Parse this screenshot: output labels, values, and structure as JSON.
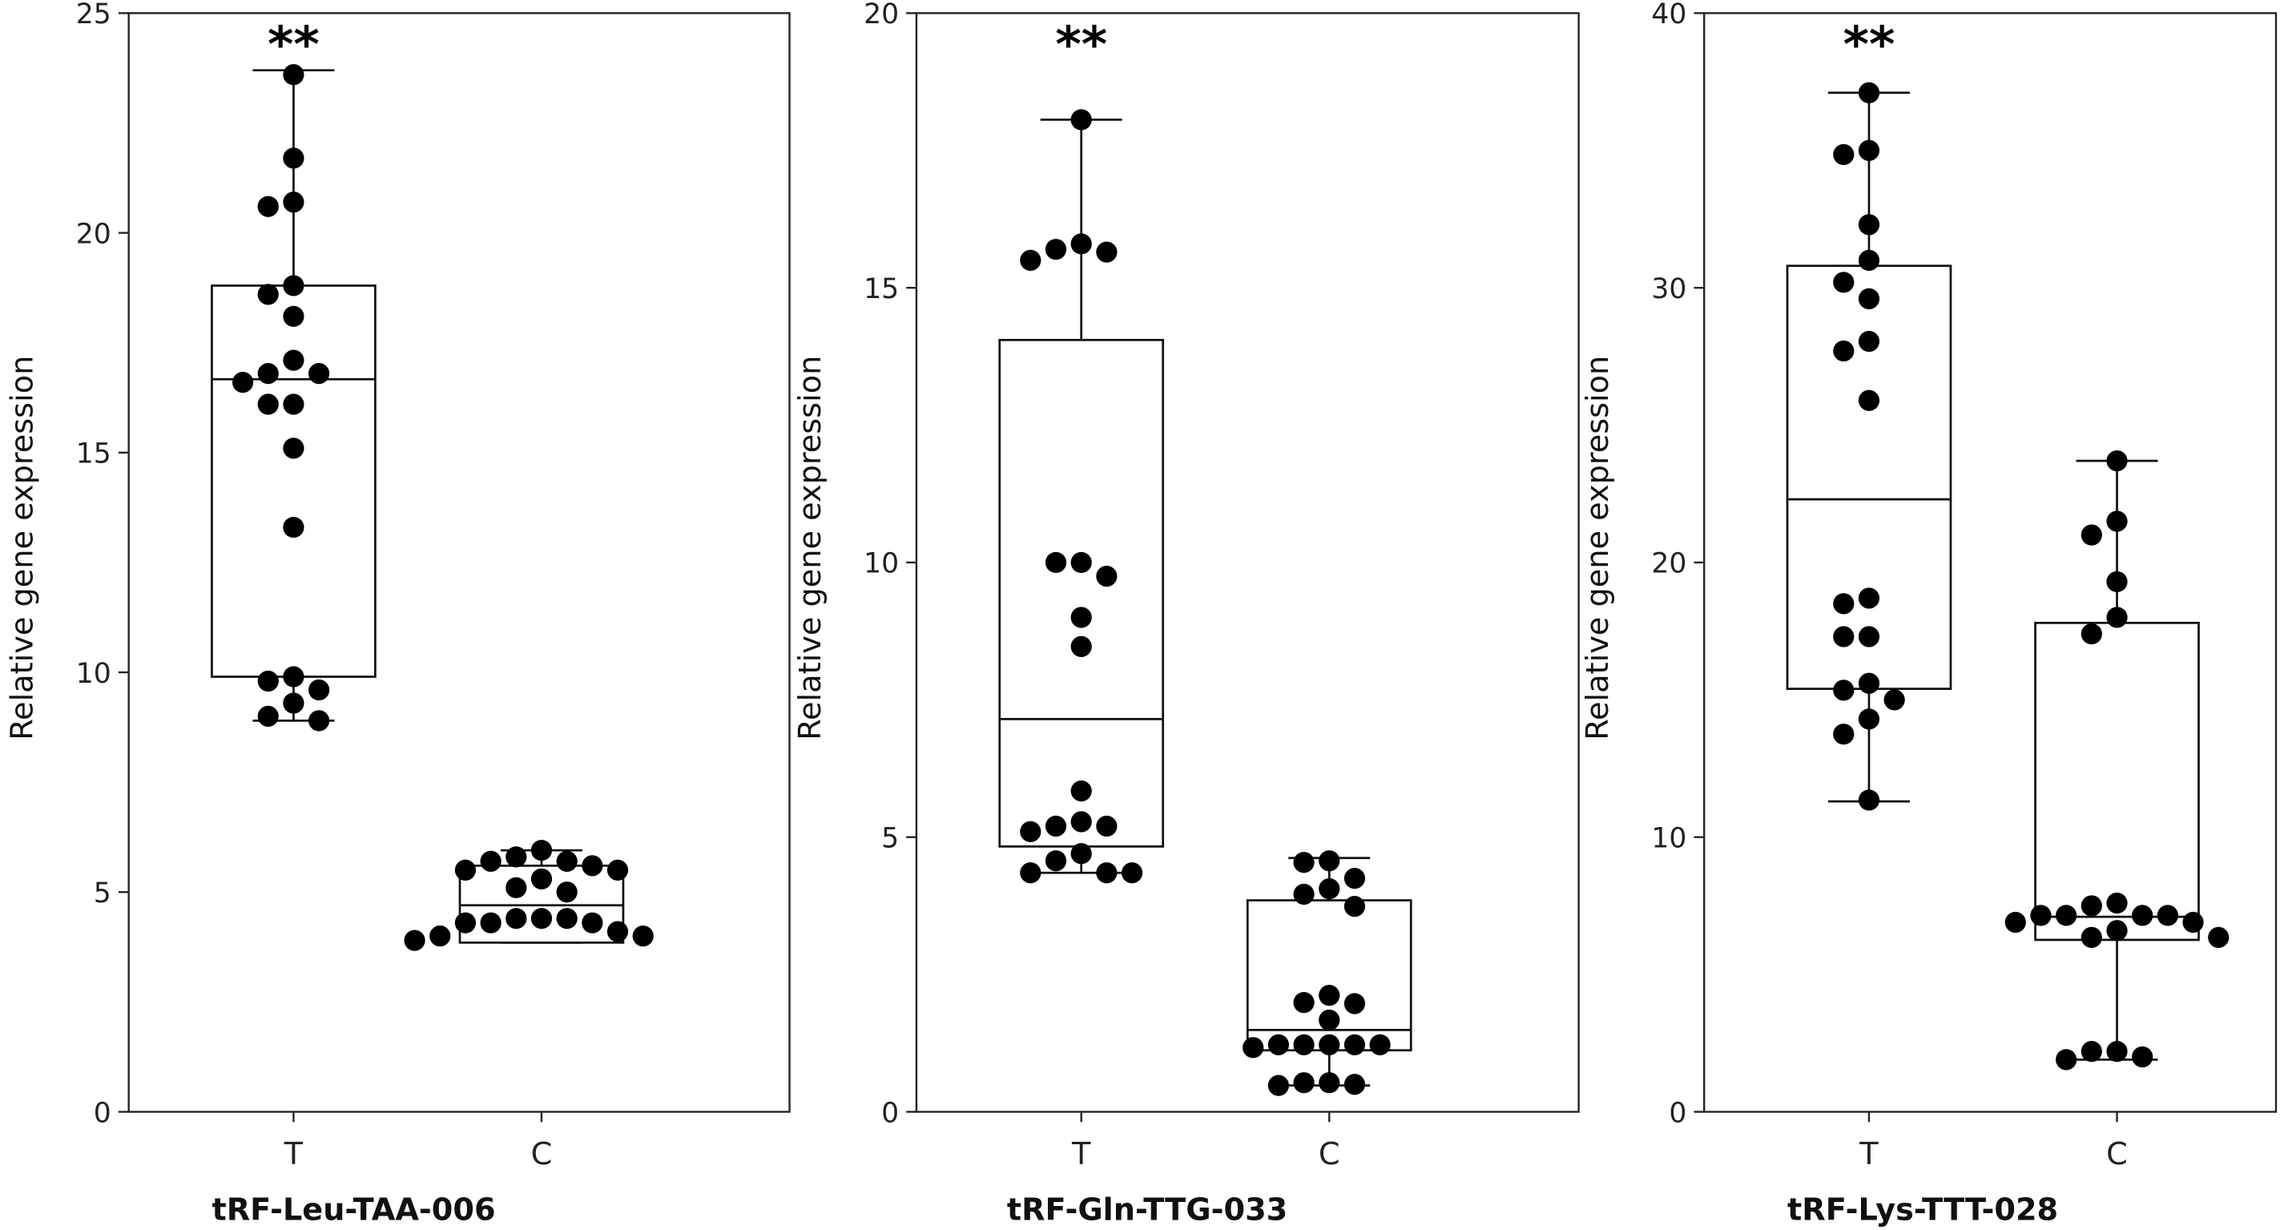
{
  "chart_data": [
    {
      "type": "box",
      "title": "tRF-Leu-TAA-006",
      "ylabel": "Relative gene expression",
      "ylim": [
        0,
        25
      ],
      "yticks": [
        0,
        5,
        10,
        15,
        20,
        25
      ],
      "categories": [
        "T",
        "C"
      ],
      "significance": "**",
      "groups": [
        {
          "name": "T",
          "box": {
            "q1": 9.9,
            "median": 16.67,
            "q3": 18.8,
            "min": 8.9,
            "max": 23.7
          },
          "points": [
            23.6,
            21.7,
            20.7,
            20.6,
            18.8,
            18.6,
            18.1,
            17.1,
            16.8,
            16.8,
            16.6,
            16.1,
            16.1,
            15.1,
            13.3,
            9.9,
            9.8,
            9.6,
            9.3,
            9.0,
            8.9
          ]
        },
        {
          "name": "C",
          "box": {
            "q1": 3.85,
            "median": 4.7,
            "q3": 5.6,
            "min": 3.85,
            "max": 5.95
          },
          "points": [
            5.95,
            5.8,
            5.7,
            5.7,
            5.6,
            5.5,
            5.5,
            5.3,
            5.1,
            5.0,
            4.4,
            4.4,
            4.4,
            4.3,
            4.3,
            4.3,
            4.1,
            4.0,
            4.0,
            3.9
          ]
        }
      ]
    },
    {
      "type": "box",
      "title": "tRF-Gln-TTG-033",
      "ylabel": "Relative gene expression",
      "ylim": [
        0,
        20
      ],
      "yticks": [
        0,
        5,
        10,
        15,
        20
      ],
      "categories": [
        "T",
        "C"
      ],
      "significance": "**",
      "groups": [
        {
          "name": "T",
          "box": {
            "q1": 4.83,
            "median": 7.15,
            "q3": 14.05,
            "min": 4.35,
            "max": 18.06
          },
          "points": [
            18.06,
            15.8,
            15.7,
            15.65,
            15.5,
            10.0,
            10.0,
            9.75,
            9.0,
            8.47,
            5.84,
            5.28,
            5.2,
            5.2,
            5.1,
            4.7,
            4.57,
            4.35,
            4.35,
            4.35
          ]
        },
        {
          "name": "C",
          "box": {
            "q1": 1.12,
            "median": 1.49,
            "q3": 3.85,
            "min": 0.48,
            "max": 4.62
          },
          "points": [
            4.57,
            4.54,
            4.25,
            4.06,
            3.96,
            3.74,
            2.12,
            1.99,
            1.97,
            1.67,
            1.22,
            1.22,
            1.22,
            1.22,
            1.22,
            1.17,
            0.53,
            0.53,
            0.5,
            0.48
          ]
        }
      ]
    },
    {
      "type": "box",
      "title": "tRF-Lys-TTT-028",
      "ylabel": "Relative gene expression",
      "ylim": [
        0,
        40
      ],
      "yticks": [
        0,
        10,
        20,
        30,
        40
      ],
      "categories": [
        "T",
        "C"
      ],
      "significance": "**",
      "groups": [
        {
          "name": "T",
          "box": {
            "q1": 15.4,
            "median": 22.3,
            "q3": 30.8,
            "min": 11.3,
            "max": 37.1
          },
          "points": [
            37.1,
            35.0,
            34.85,
            32.3,
            31.0,
            30.2,
            29.6,
            28.05,
            27.7,
            25.9,
            18.7,
            18.5,
            17.3,
            17.3,
            15.6,
            15.35,
            15.0,
            14.3,
            13.75,
            11.35
          ]
        },
        {
          "name": "C",
          "box": {
            "q1": 6.26,
            "median": 7.1,
            "q3": 17.8,
            "min": 1.9,
            "max": 23.7
          },
          "points": [
            23.7,
            21.5,
            21.0,
            19.3,
            18.0,
            17.4,
            7.6,
            7.5,
            7.15,
            7.15,
            7.15,
            7.15,
            6.9,
            6.9,
            6.6,
            6.35,
            6.35,
            2.2,
            2.2,
            2.0,
            1.9
          ]
        }
      ]
    }
  ]
}
